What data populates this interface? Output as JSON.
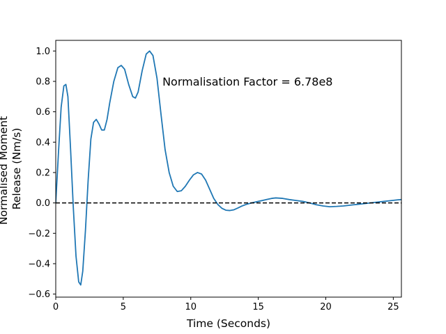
{
  "chart_data": {
    "type": "line",
    "xlabel": "Time (Seconds)",
    "ylabel_lines": [
      "Normalised Moment",
      "Release (Nm/s)"
    ],
    "xlim": [
      0,
      25.6
    ],
    "ylim": [
      -0.62,
      1.07
    ],
    "x_ticks": [
      0,
      5,
      10,
      15,
      20,
      25
    ],
    "y_ticks": [
      -0.6,
      -0.4,
      -0.2,
      0.0,
      0.2,
      0.4,
      0.6,
      0.8,
      1.0
    ],
    "x_tick_labels": [
      "0",
      "5",
      "10",
      "15",
      "20",
      "25"
    ],
    "y_tick_labels": [
      "−0.6",
      "−0.4",
      "−0.2",
      "0.0",
      "0.2",
      "0.4",
      "0.6",
      "0.8",
      "1.0"
    ],
    "grid": false,
    "annotation": {
      "text": "Normalisation Factor = 6.78e8",
      "x": 7.9,
      "y": 0.8
    },
    "reference_line": {
      "y": 0,
      "style": "dashed",
      "color": "#000000"
    },
    "series": [
      {
        "color": "#1f77b4",
        "x": [
          0,
          0.2,
          0.4,
          0.6,
          0.75,
          0.9,
          1.1,
          1.3,
          1.5,
          1.7,
          1.85,
          2.0,
          2.2,
          2.4,
          2.6,
          2.8,
          3.0,
          3.2,
          3.4,
          3.6,
          3.8,
          4.0,
          4.3,
          4.6,
          4.85,
          5.1,
          5.4,
          5.7,
          5.9,
          6.1,
          6.4,
          6.7,
          6.95,
          7.2,
          7.5,
          7.8,
          8.1,
          8.4,
          8.7,
          9.0,
          9.3,
          9.6,
          9.9,
          10.2,
          10.5,
          10.8,
          11.1,
          11.4,
          11.7,
          12.0,
          12.3,
          12.6,
          12.9,
          13.2,
          13.5,
          13.8,
          14.1,
          14.5,
          15.0,
          15.5,
          16.0,
          16.3,
          16.8,
          17.3,
          17.8,
          18.3,
          18.8,
          19.3,
          19.8,
          20.3,
          20.8,
          21.3,
          21.8,
          22.3,
          22.8,
          23.3,
          23.8,
          24.3,
          24.8,
          25.3,
          25.6
        ],
        "y": [
          0.0,
          0.33,
          0.63,
          0.77,
          0.78,
          0.7,
          0.35,
          -0.03,
          -0.35,
          -0.52,
          -0.54,
          -0.45,
          -0.18,
          0.15,
          0.42,
          0.53,
          0.55,
          0.52,
          0.48,
          0.48,
          0.55,
          0.66,
          0.8,
          0.89,
          0.905,
          0.88,
          0.78,
          0.7,
          0.69,
          0.73,
          0.87,
          0.98,
          1.0,
          0.97,
          0.82,
          0.58,
          0.35,
          0.2,
          0.11,
          0.075,
          0.08,
          0.11,
          0.15,
          0.185,
          0.2,
          0.19,
          0.15,
          0.09,
          0.03,
          -0.01,
          -0.035,
          -0.048,
          -0.05,
          -0.045,
          -0.033,
          -0.02,
          -0.01,
          0.0,
          0.01,
          0.02,
          0.03,
          0.033,
          0.03,
          0.022,
          0.016,
          0.01,
          0.0,
          -0.012,
          -0.02,
          -0.025,
          -0.023,
          -0.02,
          -0.015,
          -0.01,
          -0.005,
          0.0,
          0.005,
          0.01,
          0.015,
          0.02,
          0.022
        ]
      }
    ]
  }
}
